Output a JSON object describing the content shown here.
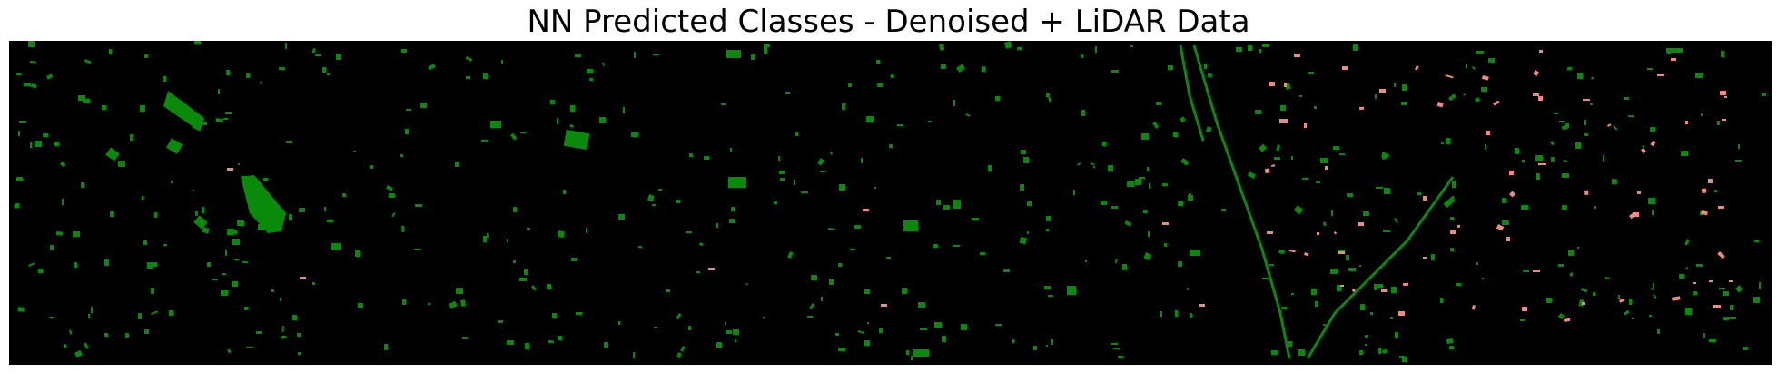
{
  "figure": {
    "title": "NN Predicted Classes - Denoised + LiDAR Data"
  },
  "map": {
    "background_color": "#000000",
    "class_colors": {
      "class_a": "#0a8a0a",
      "class_b": "#f08a80"
    },
    "axes_visible": false
  }
}
